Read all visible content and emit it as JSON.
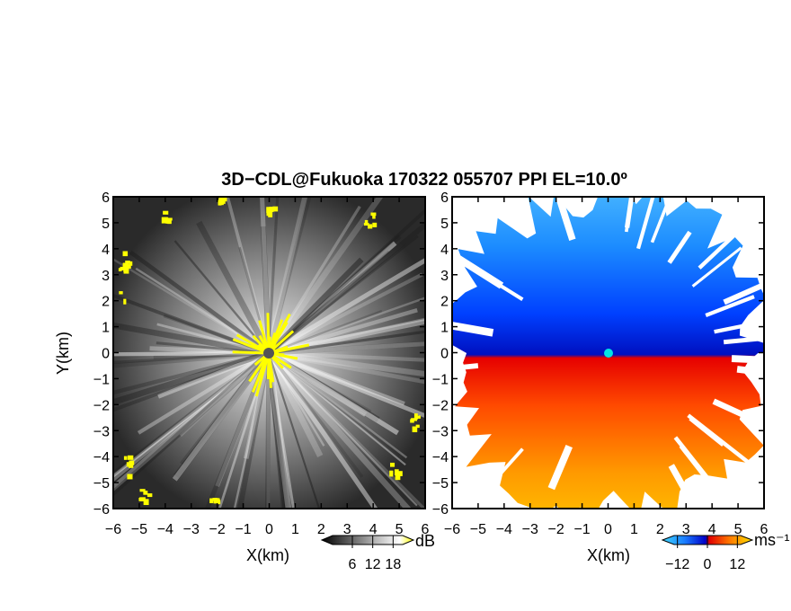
{
  "chart_data": [
    {
      "type": "heatmap",
      "title": "3D−CDL@Fukuoka 170322 055707 PPI EL=10.0º",
      "panel": "reflectivity",
      "xlabel": "X(km)",
      "ylabel": "Y(km)",
      "xlim": [
        -6,
        6
      ],
      "ylim": [
        -6,
        6
      ],
      "x_ticks": [
        "−6",
        "−5",
        "−4",
        "−3",
        "−2",
        "−1",
        "0",
        "1",
        "2",
        "3",
        "4",
        "5",
        "6"
      ],
      "y_ticks": [
        "6",
        "5",
        "4",
        "3",
        "2",
        "1",
        "0",
        "−1",
        "−2",
        "−3",
        "−4",
        "−5",
        "−6"
      ],
      "colorbar": {
        "unit": "dB",
        "ticks": [
          "6",
          "12",
          "18"
        ],
        "tick_values": [
          6,
          12,
          18
        ],
        "range": [
          -3,
          24
        ],
        "colors": [
          "#000000",
          "#ffffff",
          "#ffff00"
        ]
      },
      "center_marker_color": "#555555"
    },
    {
      "type": "heatmap",
      "panel": "radial-velocity",
      "xlabel": "X(km)",
      "xlim": [
        -6,
        6
      ],
      "ylim": [
        -6,
        6
      ],
      "x_ticks": [
        "−6",
        "−5",
        "−4",
        "−3",
        "−2",
        "−1",
        "0",
        "1",
        "2",
        "3",
        "4",
        "5",
        "6"
      ],
      "y_ticks": [
        "6",
        "5",
        "4",
        "3",
        "2",
        "1",
        "0",
        "−1",
        "−2",
        "−3",
        "−4",
        "−5",
        "−6"
      ],
      "colorbar": {
        "unit": "ms⁻¹",
        "ticks": [
          "−12",
          "0",
          "12"
        ],
        "tick_values": [
          -12,
          0,
          12
        ],
        "range": [
          -18,
          18
        ],
        "colors": [
          "#00d0ff",
          "#0050ff",
          "#0000c0",
          "#ff0000",
          "#ff8000",
          "#ffe000"
        ]
      },
      "center_marker_color": "#00e5e5"
    }
  ]
}
